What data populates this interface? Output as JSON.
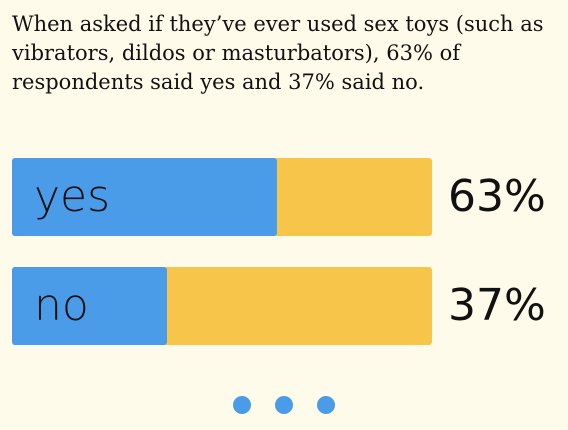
{
  "caption": "When asked if they’ve ever used sex toys (such as vibrators, dildos or masturbators), 63% of respondents said yes and 37% said no.",
  "chart_data": {
    "type": "bar",
    "orientation": "horizontal",
    "categories": [
      "yes",
      "no"
    ],
    "values": [
      63,
      37
    ],
    "value_labels": [
      "63%",
      "37%"
    ],
    "max": 100,
    "colors": {
      "fill": "#4a9ce8",
      "track": "#f6c54a"
    }
  },
  "pagination": {
    "count": 3,
    "color": "#4a9ce8"
  },
  "colors": {
    "background": "#fefbea",
    "text": "#111111"
  }
}
